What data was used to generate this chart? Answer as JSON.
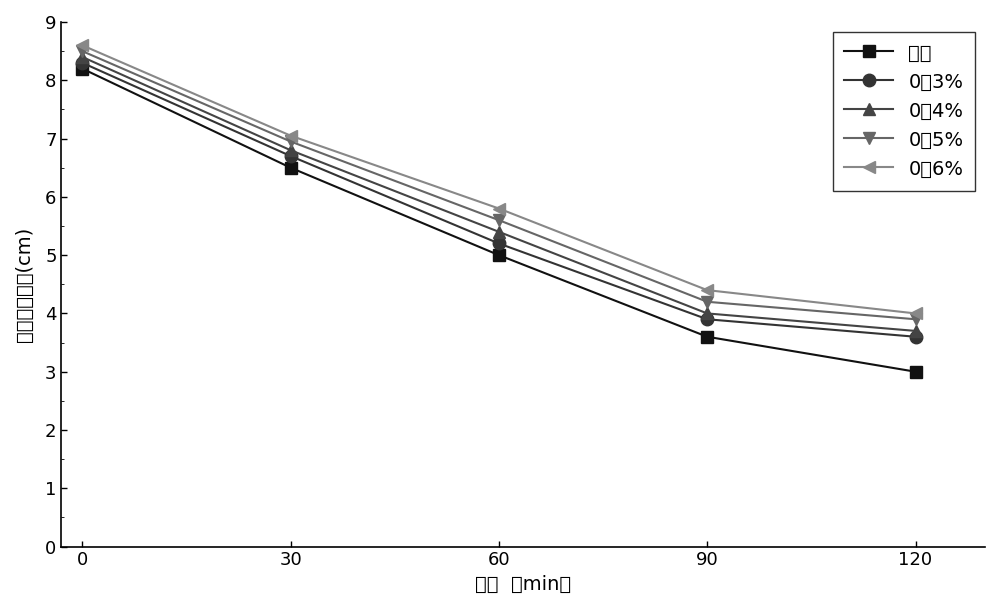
{
  "x": [
    0,
    30,
    60,
    90,
    120
  ],
  "series": [
    {
      "label": "空白",
      "values": [
        8.2,
        6.5,
        5.0,
        3.6,
        3.0
      ],
      "color": "#111111",
      "marker": "s",
      "markersize": 8,
      "linewidth": 1.5
    },
    {
      "label": "0．3%",
      "values": [
        8.3,
        6.7,
        5.2,
        3.9,
        3.6
      ],
      "color": "#333333",
      "marker": "o",
      "markersize": 9,
      "linewidth": 1.5
    },
    {
      "label": "0．4%",
      "values": [
        8.4,
        6.8,
        5.4,
        4.0,
        3.7
      ],
      "color": "#444444",
      "marker": "^",
      "markersize": 9,
      "linewidth": 1.5
    },
    {
      "label": "0．5%",
      "values": [
        8.5,
        6.95,
        5.6,
        4.2,
        3.9
      ],
      "color": "#666666",
      "marker": "v",
      "markersize": 9,
      "linewidth": 1.5
    },
    {
      "label": "0．6%",
      "values": [
        8.6,
        7.05,
        5.8,
        4.4,
        4.0
      ],
      "color": "#888888",
      "marker": "<",
      "markersize": 9,
      "linewidth": 1.5
    }
  ],
  "xlabel": "时间  （min）",
  "ylabel": "混凝土坍落度(cm)",
  "xlim": [
    -3,
    130
  ],
  "ylim": [
    0,
    9
  ],
  "yticks": [
    0,
    1,
    2,
    3,
    4,
    5,
    6,
    7,
    8,
    9
  ],
  "xticks": [
    0,
    30,
    60,
    90,
    120
  ],
  "legend_loc": "upper right",
  "legend_fontsize": 14,
  "axis_fontsize": 14,
  "tick_fontsize": 13,
  "figsize": [
    10.0,
    6.09
  ],
  "dpi": 100
}
